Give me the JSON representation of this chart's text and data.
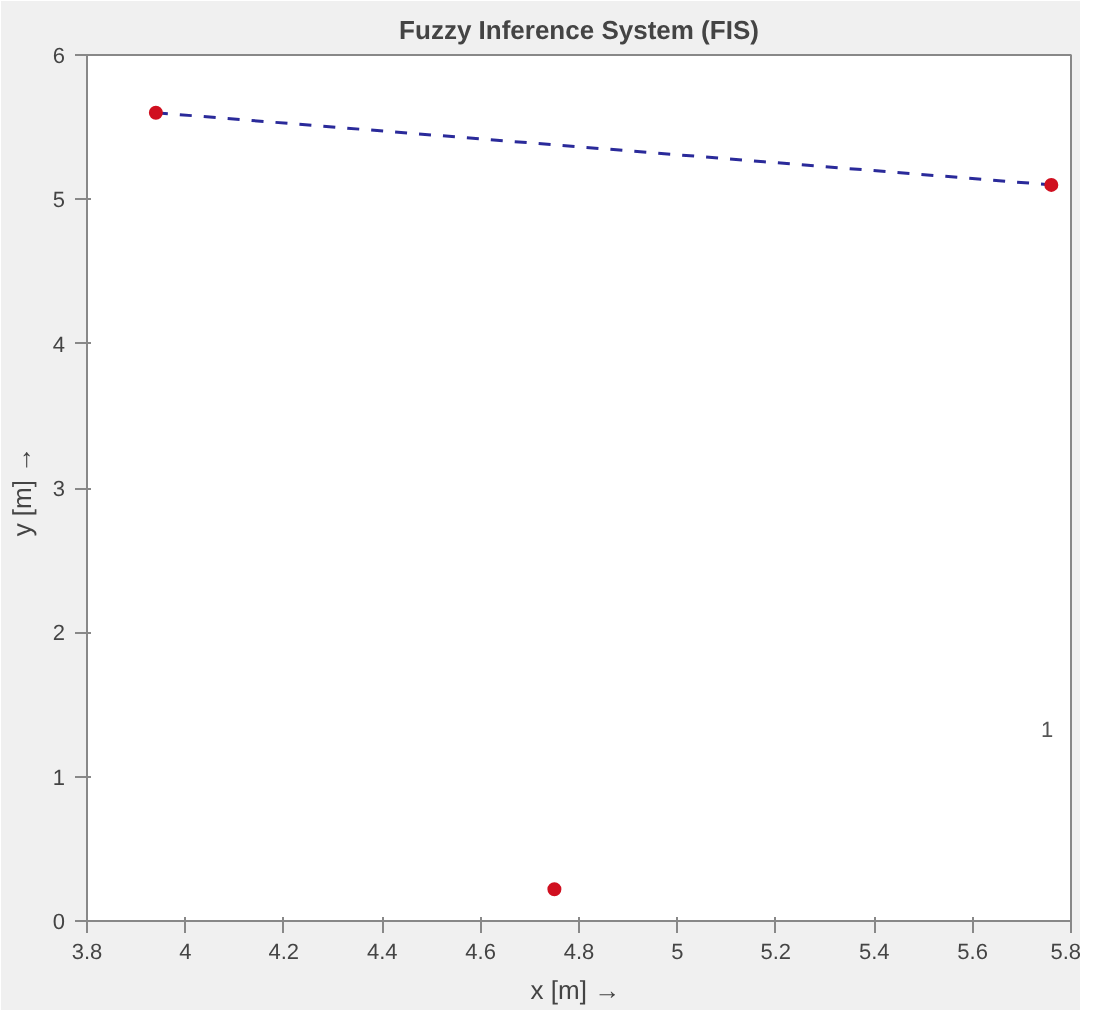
{
  "chart_data": {
    "type": "scatter",
    "title": "Fuzzy Inference System (FIS)",
    "xlabel": "x  [m] →",
    "ylabel": "y  [m] →",
    "xlim": [
      3.8,
      5.8
    ],
    "ylim": [
      0,
      6
    ],
    "xticks": [
      3.8,
      4,
      4.2,
      4.4,
      4.6,
      4.8,
      5,
      5.2,
      5.4,
      5.6,
      5.8
    ],
    "yticks": [
      0,
      1,
      2,
      3,
      4,
      5,
      6
    ],
    "grid": false,
    "annotations": [
      "1"
    ],
    "series": [
      {
        "type": "line",
        "color": "#2a2a9a",
        "x": [
          3.94,
          5.76
        ],
        "values": [
          5.6,
          5.1
        ],
        "line_style": "dashed",
        "marker": "none"
      },
      {
        "color": "#d01020",
        "x": [
          3.94,
          5.76,
          4.75
        ],
        "values": [
          5.6,
          5.1,
          0.22
        ],
        "marker": "circle"
      }
    ]
  }
}
